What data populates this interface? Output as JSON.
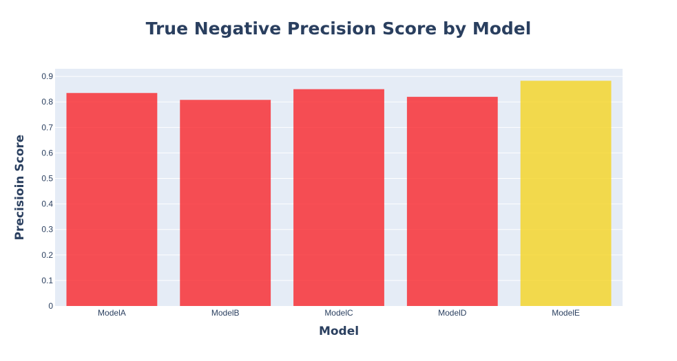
{
  "chart_data": {
    "type": "bar",
    "title": "True Negative Precision Score by Model",
    "xlabel": "Model",
    "ylabel": "Precisioin Score",
    "categories": [
      "ModelA",
      "ModelB",
      "ModelC",
      "ModelD",
      "ModelE"
    ],
    "values": [
      0.835,
      0.808,
      0.85,
      0.82,
      0.883
    ],
    "bar_colors": [
      "#f9262a",
      "#f9262a",
      "#f9262a",
      "#f9262a",
      "#f5d422"
    ],
    "bar_opacity": 0.8,
    "ylim": [
      0,
      0.93
    ],
    "yticks": [
      0,
      0.1,
      0.2,
      0.3,
      0.4,
      0.5,
      0.6,
      0.7,
      0.8,
      0.9
    ],
    "ytick_labels": [
      "0",
      "0.1",
      "0.2",
      "0.3",
      "0.4",
      "0.5",
      "0.6",
      "0.7",
      "0.8",
      "0.9"
    ],
    "grid": true,
    "legend": false,
    "plot_background": "#e5ecf6",
    "grid_color": "#ffffff",
    "text_color": "#2a3f5f"
  }
}
